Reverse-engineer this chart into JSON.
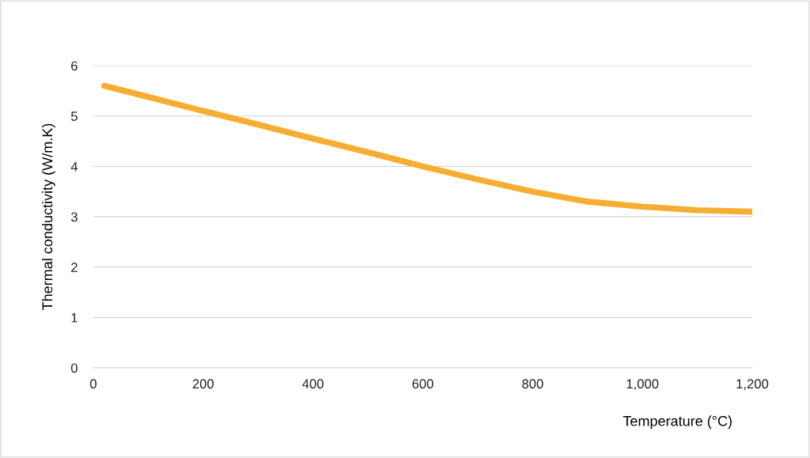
{
  "chart_data": {
    "type": "line",
    "xlabel": "Temperature (°C)",
    "ylabel": "Thermal conductivity (W/m.K)",
    "series": [
      {
        "color": "#f5ae32",
        "x": [
          20,
          100,
          200,
          300,
          400,
          500,
          600,
          700,
          800,
          900,
          1000,
          1100,
          1200
        ],
        "values": [
          5.6,
          5.38,
          5.1,
          4.83,
          4.55,
          4.28,
          4.0,
          3.74,
          3.5,
          3.3,
          3.2,
          3.13,
          3.1
        ]
      }
    ],
    "xlim": [
      0,
      1200
    ],
    "xticks": [
      0,
      200,
      400,
      600,
      800,
      {
        "value": 1000,
        "label": "1,000"
      },
      {
        "value": 1200,
        "label": "1,200"
      }
    ],
    "ylim": [
      0,
      6
    ],
    "yticks": [
      0,
      1,
      2,
      3,
      4,
      5,
      6
    ],
    "grid": "y",
    "legend": false,
    "marker": "none",
    "line_style": "solid"
  }
}
